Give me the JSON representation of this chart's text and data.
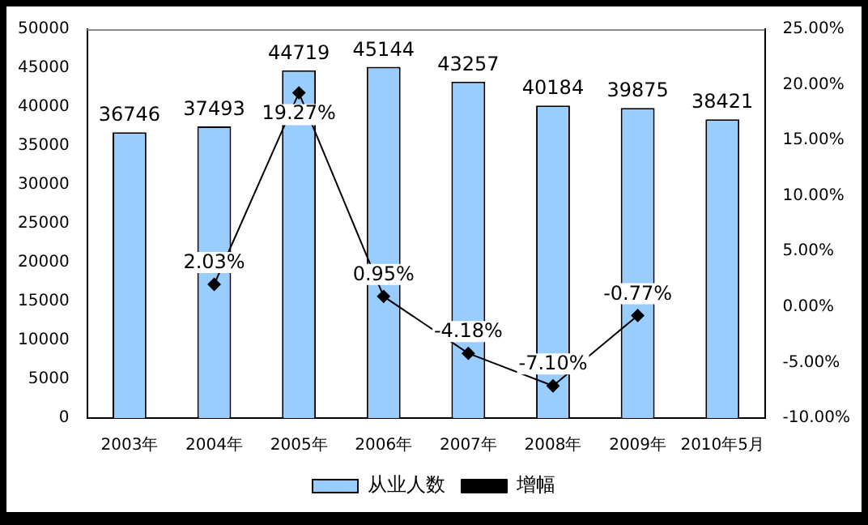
{
  "chart_data": {
    "type": "bar",
    "categories": [
      "2003年",
      "2004年",
      "2005年",
      "2006年",
      "2007年",
      "2008年",
      "2009年",
      "2010年5月"
    ],
    "series": [
      {
        "name": "从业人数",
        "type": "bar",
        "color": "#99ccff",
        "values": [
          36746,
          37493,
          44719,
          45144,
          43257,
          40184,
          39875,
          38421
        ],
        "value_labels": [
          "36746",
          "37493",
          "44719",
          "45144",
          "43257",
          "40184",
          "39875",
          "38421"
        ]
      },
      {
        "name": "增幅",
        "type": "line",
        "axis": "y2",
        "color": "#000000",
        "marker": "diamond",
        "values": [
          null,
          2.03,
          19.27,
          0.95,
          -4.18,
          -7.1,
          -0.77,
          null
        ],
        "value_labels": [
          null,
          "2.03%",
          "19.27%",
          "0.95%",
          "-4.18%",
          "-7.10%",
          "-0.77%",
          null
        ]
      }
    ],
    "ylim": [
      0,
      50000
    ],
    "yticks": [
      0,
      5000,
      10000,
      15000,
      20000,
      25000,
      30000,
      35000,
      40000,
      45000,
      50000
    ],
    "y2lim": [
      -10,
      25
    ],
    "y2ticks": [
      {
        "value": -10,
        "label": "-10.00%"
      },
      {
        "value": -5,
        "label": "-5.00%"
      },
      {
        "value": 0,
        "label": "0.00%"
      },
      {
        "value": 5,
        "label": "5.00%"
      },
      {
        "value": 10,
        "label": "10.00%"
      },
      {
        "value": 15,
        "label": "15.00%"
      },
      {
        "value": 20,
        "label": "20.00%"
      },
      {
        "value": 25,
        "label": "25.00%"
      }
    ],
    "grid": false,
    "legend": "bottom"
  }
}
